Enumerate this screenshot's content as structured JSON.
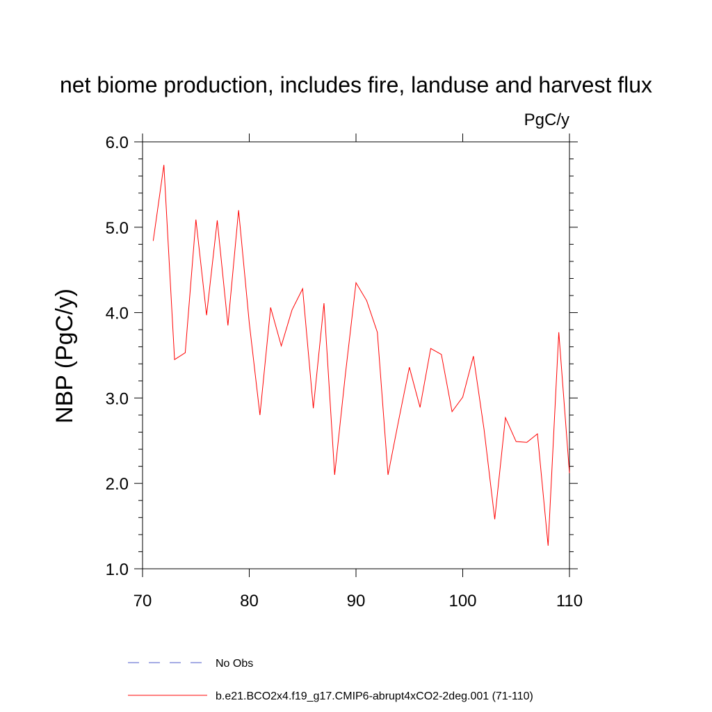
{
  "chart_data": {
    "type": "line",
    "title": "net biome production, includes fire, landuse and harvest flux",
    "units_label": "PgC/y",
    "ylabel": "NBP  (PgC/y)",
    "xlabel": "",
    "xlim": [
      70,
      110
    ],
    "ylim": [
      1.0,
      6.0
    ],
    "x_ticks": [
      70,
      80,
      90,
      100,
      110
    ],
    "x_tick_labels": [
      "70",
      "80",
      "90",
      "100",
      "110"
    ],
    "y_ticks": [
      1.0,
      2.0,
      3.0,
      4.0,
      5.0,
      6.0
    ],
    "y_tick_labels": [
      "1.0",
      "2.0",
      "3.0",
      "4.0",
      "5.0",
      "6.0"
    ],
    "grid": false,
    "legend_position": "bottom",
    "x": [
      71,
      72,
      73,
      74,
      75,
      76,
      77,
      78,
      79,
      80,
      81,
      82,
      83,
      84,
      85,
      86,
      87,
      88,
      89,
      90,
      91,
      92,
      93,
      94,
      95,
      96,
      97,
      98,
      99,
      100,
      101,
      102,
      103,
      104,
      105,
      106,
      107,
      108,
      109,
      110
    ],
    "series": [
      {
        "name": "b.e21.BCO2x4.f19_g17.CMIP6-abrupt4xCO2-2deg.001 (71-110)",
        "color": "#ff0000",
        "dash": "solid",
        "values": [
          4.84,
          5.73,
          3.45,
          3.53,
          5.09,
          3.97,
          5.08,
          3.85,
          5.2,
          3.88,
          2.8,
          4.06,
          3.61,
          4.03,
          4.28,
          2.88,
          4.11,
          2.1,
          3.27,
          4.35,
          4.14,
          3.77,
          2.1,
          2.74,
          3.36,
          2.89,
          3.58,
          3.51,
          2.84,
          3.01,
          3.49,
          2.63,
          1.58,
          2.77,
          2.49,
          2.48,
          2.58,
          1.27,
          3.77,
          2.12
        ]
      }
    ],
    "legend": [
      {
        "label": "No Obs",
        "color": "#4a57c8",
        "dash": "dashed"
      },
      {
        "label": "b.e21.BCO2x4.f19_g17.CMIP6-abrupt4xCO2-2deg.001 (71-110)",
        "color": "#ff0000",
        "dash": "solid"
      }
    ]
  }
}
